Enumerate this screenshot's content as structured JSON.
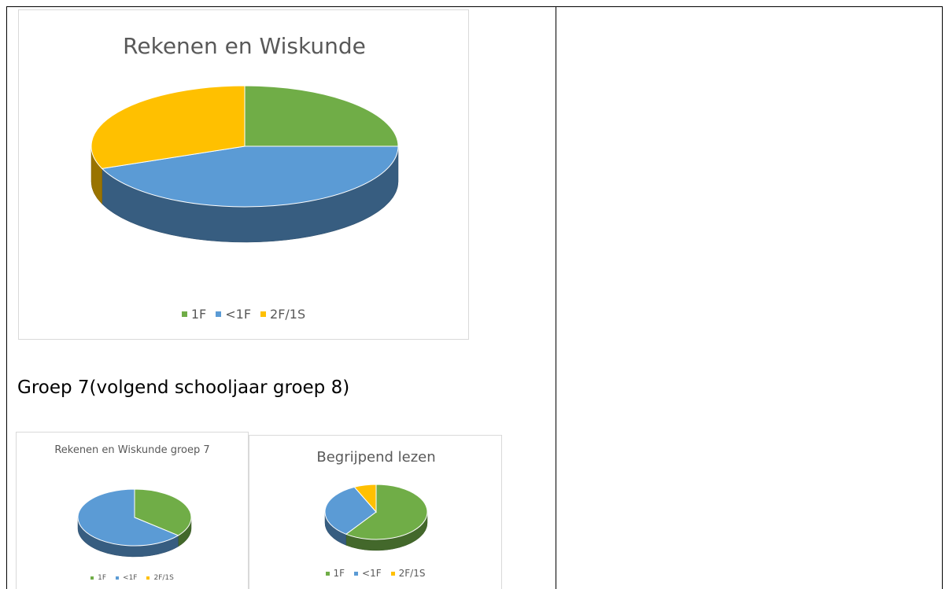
{
  "chart_data": [
    {
      "type": "pie3d",
      "title": "Rekenen en Wiskunde",
      "categories": [
        "1F",
        "<1F",
        "2F/1S"
      ],
      "values": [
        25,
        44,
        31
      ],
      "colors": [
        "#70ad47",
        "#5b9bd5",
        "#ffc000"
      ],
      "legend": "bottom"
    },
    {
      "type": "pie3d",
      "title": "Rekenen en Wiskunde groep 7",
      "categories": [
        "1F",
        "<1F",
        "2F/1S"
      ],
      "values": [
        36,
        64,
        0
      ],
      "colors": [
        "#70ad47",
        "#5b9bd5",
        "#ffc000"
      ],
      "legend": "bottom"
    },
    {
      "type": "pie3d",
      "title": "Begrijpend lezen",
      "categories": [
        "1F",
        "<1F",
        "2F/1S"
      ],
      "values": [
        60,
        33,
        7
      ],
      "colors": [
        "#70ad47",
        "#5b9bd5",
        "#ffc000"
      ],
      "legend": "bottom"
    }
  ],
  "heading": "Groep 7(volgend schooljaar groep 8)"
}
